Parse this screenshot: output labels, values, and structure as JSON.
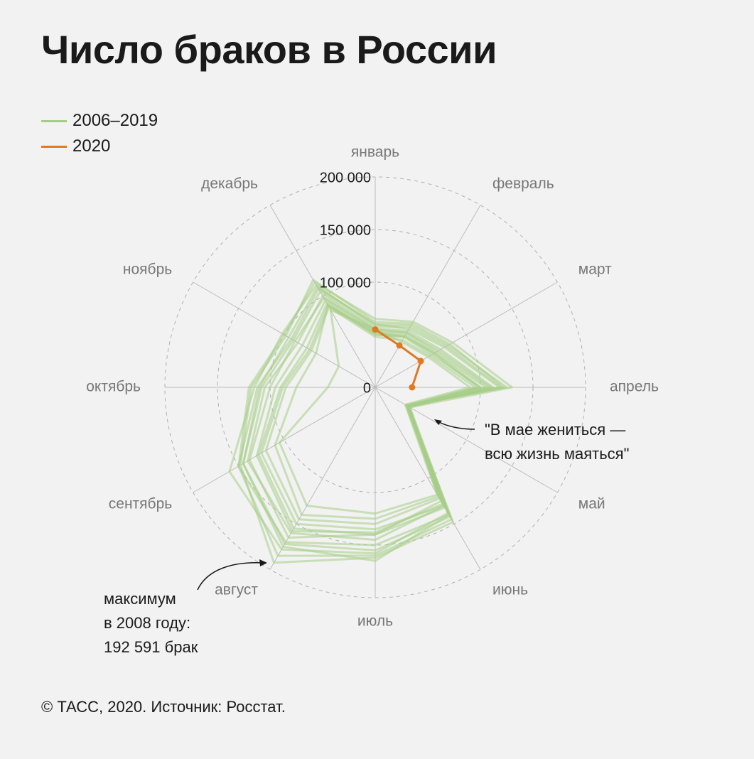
{
  "title": "Число браков в России",
  "legend": [
    {
      "label": "2006–2019",
      "color": "#a5cd86"
    },
    {
      "label": "2020",
      "color": "#e07a22"
    }
  ],
  "source": "© ТАСС, 2020. Источник: Росстат.",
  "annotations": {
    "may": "\"В мае жениться —\nвсю жизнь маяться\"",
    "max": "максимум\nв 2008 году:\n192 591 брак"
  },
  "chart_data": {
    "type": "radar",
    "categories": [
      "январь",
      "февраль",
      "март",
      "апрель",
      "май",
      "июнь",
      "июль",
      "август",
      "сентябрь",
      "октябрь",
      "ноябрь",
      "декабрь"
    ],
    "r_ticks": [
      0,
      100000,
      150000,
      200000
    ],
    "r_tick_labels": [
      "0",
      "100 000",
      "150 000",
      "200 000"
    ],
    "rlim": [
      0,
      200000
    ],
    "grid": true,
    "series": [
      {
        "name": "2006–2019",
        "values": [
          60000,
          68000,
          80000,
          125000,
          35000,
          140000,
          165000,
          175000,
          145000,
          110000,
          95000,
          110000
        ]
      },
      {
        "name": "2006–2019",
        "values": [
          65000,
          72000,
          85000,
          130000,
          38000,
          145000,
          160000,
          185000,
          150000,
          120000,
          100000,
          115000
        ]
      },
      {
        "name": "2006–2019",
        "values": [
          62000,
          70000,
          82000,
          122000,
          36000,
          148000,
          162000,
          192591,
          148000,
          118000,
          98000,
          118000
        ]
      },
      {
        "name": "2006–2019",
        "values": [
          58000,
          66000,
          78000,
          120000,
          34000,
          138000,
          158000,
          178000,
          160000,
          115000,
          102000,
          112000
        ]
      },
      {
        "name": "2006–2019",
        "values": [
          60000,
          64000,
          76000,
          118000,
          36000,
          140000,
          150000,
          170000,
          150000,
          112000,
          92000,
          108000
        ]
      },
      {
        "name": "2006–2019",
        "values": [
          56000,
          62000,
          72000,
          112000,
          37000,
          142000,
          155000,
          172000,
          145000,
          108000,
          90000,
          105000
        ]
      },
      {
        "name": "2006–2019",
        "values": [
          55000,
          60000,
          70000,
          110000,
          38000,
          130000,
          145000,
          160000,
          140000,
          105000,
          85000,
          100000
        ]
      },
      {
        "name": "2006–2019",
        "values": [
          54000,
          60000,
          68000,
          108000,
          36000,
          132000,
          140000,
          165000,
          138000,
          100000,
          88000,
          98000
        ]
      },
      {
        "name": "2006–2019",
        "values": [
          52000,
          58000,
          66000,
          105000,
          35000,
          128000,
          138000,
          158000,
          130000,
          95000,
          80000,
          95000
        ]
      },
      {
        "name": "2006–2019",
        "values": [
          50000,
          56000,
          65000,
          100000,
          36000,
          125000,
          140000,
          155000,
          128000,
          90000,
          75000,
          92000
        ]
      },
      {
        "name": "2006–2019",
        "values": [
          50000,
          55000,
          62000,
          100000,
          35000,
          130000,
          135000,
          150000,
          125000,
          88000,
          72000,
          90000
        ]
      },
      {
        "name": "2006–2019",
        "values": [
          48000,
          52000,
          60000,
          95000,
          34000,
          122000,
          130000,
          145000,
          120000,
          85000,
          70000,
          88000
        ]
      },
      {
        "name": "2006–2019",
        "values": [
          52000,
          56000,
          64000,
          98000,
          36000,
          120000,
          125000,
          140000,
          110000,
          75000,
          65000,
          90000
        ]
      },
      {
        "name": "2006–2019",
        "values": [
          55000,
          50000,
          58000,
          90000,
          33000,
          118000,
          120000,
          130000,
          105000,
          45000,
          40000,
          85000
        ]
      }
    ],
    "highlight": {
      "name": "2020",
      "values": [
        55000,
        46000,
        50000,
        35000
      ]
    }
  }
}
